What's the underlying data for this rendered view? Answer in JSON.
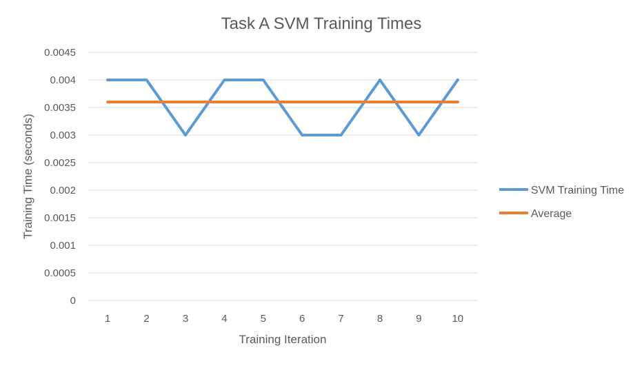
{
  "chart_data": {
    "type": "line",
    "title": "Task A SVM Training Times",
    "xlabel": "Training Iteration",
    "ylabel": "Training Time (seconds)",
    "categories": [
      "1",
      "2",
      "3",
      "4",
      "5",
      "6",
      "7",
      "8",
      "9",
      "10"
    ],
    "yticks": [
      "0",
      "0.0005",
      "0.001",
      "0.0015",
      "0.002",
      "0.0025",
      "0.003",
      "0.0035",
      "0.004",
      "0.0045"
    ],
    "ylim": [
      0,
      0.0045
    ],
    "grid": true,
    "legend_position": "right",
    "series": [
      {
        "name": "SVM Training Time",
        "color": "#5B9BD5",
        "values": [
          0.004,
          0.004,
          0.003,
          0.004,
          0.004,
          0.003,
          0.003,
          0.004,
          0.003,
          0.004
        ]
      },
      {
        "name": "Average",
        "color": "#ED7D31",
        "values": [
          0.0036,
          0.0036,
          0.0036,
          0.0036,
          0.0036,
          0.0036,
          0.0036,
          0.0036,
          0.0036,
          0.0036
        ]
      }
    ]
  }
}
